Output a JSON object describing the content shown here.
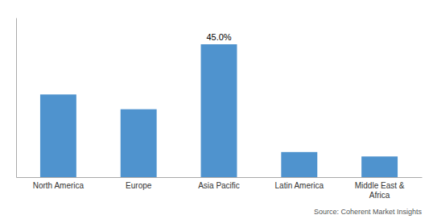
{
  "chart_data": {
    "type": "bar",
    "categories": [
      "North America",
      "Europe",
      "Asia Pacific",
      "Latin America",
      "Middle East &\nAfrica"
    ],
    "values": [
      28.0,
      23.0,
      45.0,
      8.5,
      7.0
    ],
    "data_labels": true,
    "value_labels": [
      null,
      null,
      "45.0%",
      null,
      null
    ],
    "color": "#4f93ce",
    "ylim": [
      0,
      54
    ],
    "tick_labels": "x",
    "grid": false,
    "annotations": [
      "Source: Coherent Market Insights"
    ]
  }
}
